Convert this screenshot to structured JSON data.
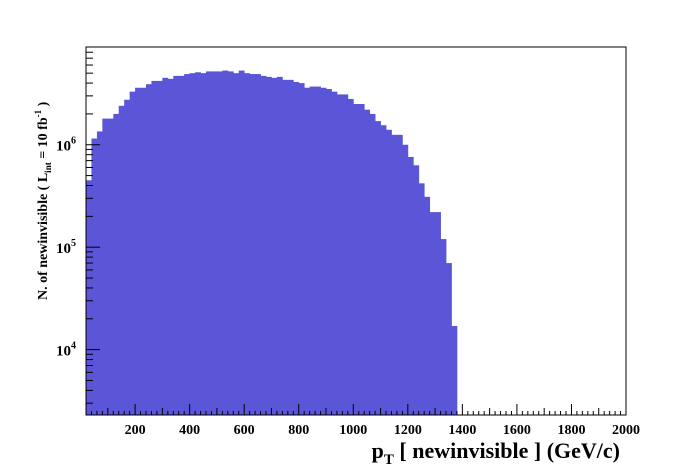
{
  "chart_data": {
    "type": "bar",
    "xlabel": "p_T [ newinvisible ] (GeV/c)",
    "xlabel_main": "p",
    "xlabel_sub": "T",
    "xlabel_rest": " [ newinvisible ] (GeV/c)",
    "ylabel": "N. of newinvisible ( L_int = 10 fb^-1 )",
    "ylabel_main": "N. of newinvisible ( L",
    "ylabel_sub": "int",
    "ylabel_mid": " = 10 fb",
    "ylabel_sup": "-1",
    "ylabel_end": " )",
    "xlim": [
      20,
      2000
    ],
    "ylim": [
      2300,
      9000000
    ],
    "yscale": "log",
    "grid": false,
    "fill_color": "#5b55d8",
    "x_ticks": [
      "200",
      "400",
      "600",
      "800",
      "1000",
      "1200",
      "1400",
      "1600",
      "1800",
      "2000"
    ],
    "y_ticks": [
      {
        "base": "10",
        "exp": "4",
        "value": 10000
      },
      {
        "base": "10",
        "exp": "5",
        "value": 100000
      },
      {
        "base": "10",
        "exp": "6",
        "value": 1000000
      }
    ],
    "bin_width": 20,
    "bin_start": 20,
    "values": [
      450000,
      1150000,
      1350000,
      1800000,
      1800000,
      2000000,
      2400000,
      2750000,
      3300000,
      3600000,
      3600000,
      3900000,
      4200000,
      4200000,
      4500000,
      4400000,
      4700000,
      4700000,
      4900000,
      5000000,
      5100000,
      5000000,
      5200000,
      5200000,
      5200000,
      5300000,
      5200000,
      5000000,
      5300000,
      5000000,
      4900000,
      4900000,
      4700000,
      4600000,
      4500000,
      4600000,
      4300000,
      4300000,
      4100000,
      4000000,
      3600000,
      3700000,
      3700000,
      3600000,
      3500000,
      3300000,
      3100000,
      3100000,
      2800000,
      2500000,
      2500000,
      2200000,
      2000000,
      1700000,
      1550000,
      1400000,
      1250000,
      1250000,
      1000000,
      760000,
      630000,
      420000,
      310000,
      220000,
      220000,
      120000,
      70000,
      17000,
      0,
      0,
      0,
      0,
      0,
      0,
      0,
      0,
      0,
      0,
      0,
      0,
      0,
      0,
      0,
      0,
      0,
      0,
      0,
      0,
      0,
      0,
      0,
      0,
      0,
      0,
      0,
      0,
      0,
      0,
      0
    ]
  }
}
